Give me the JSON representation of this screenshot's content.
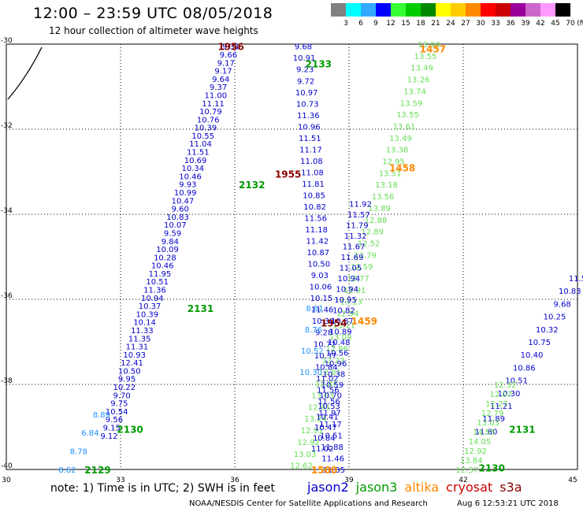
{
  "header": {
    "title": "12:00 – 23:59 UTC 08/05/2018",
    "subtitle": "12 hour collection of altimeter wave heights"
  },
  "legend": {
    "unit": "(ft)",
    "bins": [
      {
        "label": "3",
        "color": "#808080"
      },
      {
        "label": "6",
        "color": "#00ffff"
      },
      {
        "label": "9",
        "color": "#33aaff"
      },
      {
        "label": "12",
        "color": "#0000ff"
      },
      {
        "label": "15",
        "color": "#33ff33"
      },
      {
        "label": "18",
        "color": "#00cc00"
      },
      {
        "label": "21",
        "color": "#008800"
      },
      {
        "label": "24",
        "color": "#ffff00"
      },
      {
        "label": "27",
        "color": "#ffcc00"
      },
      {
        "label": "30",
        "color": "#ff8800"
      },
      {
        "label": "33",
        "color": "#ff0000"
      },
      {
        "label": "36",
        "color": "#cc0000"
      },
      {
        "label": "39",
        "color": "#990099"
      },
      {
        "label": "42",
        "color": "#cc66cc"
      },
      {
        "label": "45",
        "color": "#ff99ff"
      },
      {
        "label": "70",
        "color": "#000000"
      }
    ]
  },
  "axes": {
    "x_ticks": [
      "30",
      "33",
      "36",
      "39",
      "42",
      "45"
    ],
    "y_ticks": [
      "-30",
      "-32",
      "-34",
      "-36",
      "-38",
      "-40"
    ]
  },
  "passes": [
    {
      "label": "1956",
      "color": "#880000",
      "lon": 35.9,
      "lat": -30.05
    },
    {
      "label": "2133",
      "color": "#009900",
      "lon": 38.2,
      "lat": -30.45
    },
    {
      "label": "1955",
      "color": "#880000",
      "lon": 37.4,
      "lat": -33.05
    },
    {
      "label": "2132",
      "color": "#009900",
      "lon": 36.45,
      "lat": -33.3
    },
    {
      "label": "2131",
      "color": "#009900",
      "lon": 35.1,
      "lat": -36.2
    },
    {
      "label": "1954",
      "color": "#880000",
      "lon": 38.6,
      "lat": -36.55
    },
    {
      "label": "1459",
      "color": "#ff8800",
      "lon": 39.4,
      "lat": -36.5
    },
    {
      "label": "1457",
      "color": "#ff8800",
      "lon": 41.2,
      "lat": -30.1
    },
    {
      "label": "1458",
      "color": "#ff8800",
      "lon": 40.4,
      "lat": -32.9
    },
    {
      "label": "2130",
      "color": "#009900",
      "lon": 33.25,
      "lat": -39.05
    },
    {
      "label": "2129",
      "color": "#009900",
      "lon": 32.4,
      "lat": -40.0
    },
    {
      "label": "1500",
      "color": "#ff8800",
      "lon": 38.35,
      "lat": -40.0
    },
    {
      "label": "2131",
      "color": "#009900",
      "lon": 43.55,
      "lat": -39.05
    },
    {
      "label": "2130",
      "color": "#009900",
      "lon": 42.75,
      "lat": -39.95
    }
  ],
  "tracks": [
    {
      "color": "#0000cc",
      "lon0": 35.9,
      "lat0": -30.05,
      "lon1": 32.7,
      "lat1": -39.2,
      "values": [
        "9.31",
        "9.66",
        "9.17",
        "9.17",
        "9.64",
        "9.37",
        "11.00",
        "11.11",
        "10.79",
        "10.76",
        "10.39",
        "10.55",
        "11.04",
        "11.51",
        "10.69",
        "10.34",
        "10.46",
        "9.93",
        "10.99",
        "10.47",
        "9.60",
        "10.83",
        "10.07",
        "9.59",
        "9.84",
        "10.09",
        "10.28",
        "10.46",
        "11.95",
        "10.51",
        "11.36",
        "10.94",
        "10.37",
        "10.39",
        "10.14",
        "11.33",
        "11.35",
        "11.31",
        "10.93",
        "12.41",
        "10.50",
        "9.95",
        "10.22",
        "9.70",
        "9.75",
        "10.54",
        "9.56",
        "9.15",
        "9.12"
      ]
    },
    {
      "color": "#1e90ff",
      "lon0": 32.5,
      "lat0": -38.7,
      "lon1": 31.6,
      "lat1": -40.0,
      "values": [
        "8.89",
        "6.84",
        "8.78",
        "8.62"
      ]
    },
    {
      "color": "#0000cc",
      "lon0": 37.8,
      "lat0": -30.05,
      "lon1": 38.6,
      "lat1": -40.0,
      "values": [
        "9.68",
        "10.91",
        "9.23",
        "9.72",
        "10.97",
        "10.73",
        "11.36",
        "10.96",
        "11.51",
        "11.17",
        "11.08",
        "11.08",
        "11.81",
        "10.85",
        "10.82",
        "11.56",
        "11.18",
        "11.42",
        "10.87",
        "10.50",
        "9.03",
        "10.06",
        "10.15",
        "11.46",
        "10.30",
        "9.28",
        "10.72",
        "10.37",
        "10.84",
        "11.02",
        "11.56",
        "11.56",
        "11.97",
        "11.17",
        "10.51",
        "11.88",
        "11.46",
        "11.85"
      ]
    },
    {
      "color": "#66dd55",
      "lon0": 41.1,
      "lat0": -30.0,
      "lon1": 37.75,
      "lat1": -39.9,
      "values": [
        "13.90",
        "13.55",
        "13.49",
        "13.26",
        "13.74",
        "13.59",
        "13.55",
        "13.61",
        "13.49",
        "13.38",
        "12.95",
        "13.51",
        "13.18",
        "13.56",
        "13.89",
        "12.88",
        "12.89",
        "12.52",
        "12.79",
        "12.59",
        "12.77",
        "12.91",
        "13.13",
        "12.94",
        "13.11",
        "13.09",
        "12.86",
        "13.23",
        "12.81",
        "12.87",
        "13.03",
        "12.91",
        "13.24",
        "12.91",
        "12.92",
        "13.03",
        "12.62"
      ]
    },
    {
      "color": "#0000cc",
      "lon0": 39.3,
      "lat0": -33.75,
      "lon1": 38.3,
      "lat1": -39.5,
      "values": [
        "11.92",
        "11.57",
        "11.79",
        "11.32",
        "11.67",
        "11.69",
        "11.05",
        "10.94",
        "10.94",
        "10.95",
        "10.82",
        "10.87",
        "10.89",
        "10.48",
        "10.56",
        "10.96",
        "10.38",
        "10.59",
        "10.70",
        "10.53",
        "10.41",
        "10.47",
        "10.84",
        "11.02"
      ]
    },
    {
      "color": "#0000cc",
      "lon0": 45.0,
      "lat0": -35.5,
      "lon1": 42.6,
      "lat1": -39.1,
      "values": [
        "11.5",
        "10.83",
        "9.68",
        "10.25",
        "10.32",
        "10.75",
        "10.40",
        "10.86",
        "10.51",
        "10.30",
        "11.21",
        "11.89",
        "11.80"
      ]
    },
    {
      "color": "#66dd55",
      "lon0": 43.1,
      "lat0": -38.0,
      "lon1": 42.1,
      "lat1": -40.0,
      "values": [
        "12.32",
        "12.07",
        "12.27",
        "12.79",
        "13.03",
        "14.55",
        "14.05",
        "12.92",
        "13.84",
        "12.37"
      ]
    },
    {
      "color": "#1e90ff",
      "lon0": 38.1,
      "lat0": -36.2,
      "lon1": 38.0,
      "lat1": -37.7,
      "values": [
        "8.81",
        "8.76",
        "10.52",
        "10.30"
      ]
    }
  ],
  "note": "note:  1) Time is in UTC;  2) SWH is in feet",
  "satellites": [
    {
      "name": "jason2",
      "color": "#0000cc"
    },
    {
      "name": "jason3",
      "color": "#009900"
    },
    {
      "name": "altika",
      "color": "#ff8800"
    },
    {
      "name": "cryosat",
      "color": "#cc0000"
    },
    {
      "name": "s3a",
      "color": "#880000"
    }
  ],
  "credit": "NOAA/NESDIS Center for Satellite Applications and Research",
  "timestamp": "Aug  6 12:53:21 UTC 2018"
}
